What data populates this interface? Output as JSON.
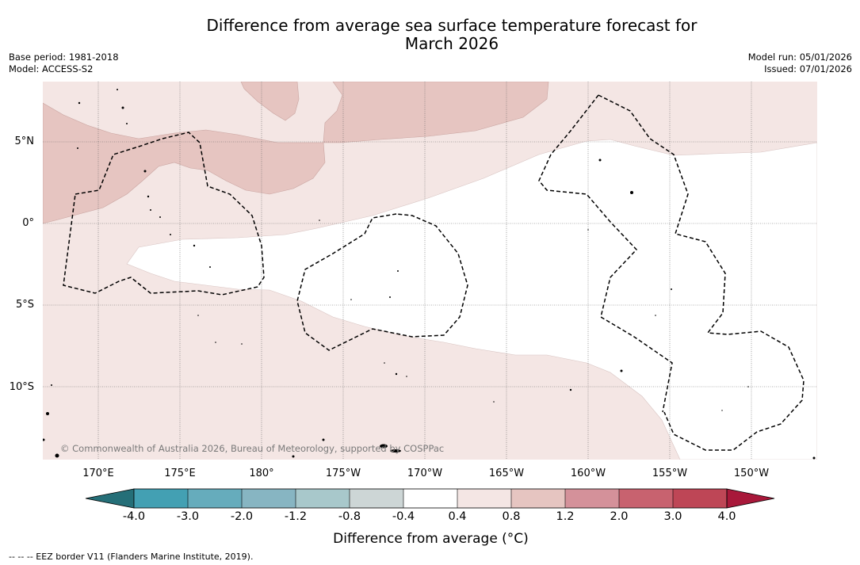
{
  "title_line1": "Difference from average sea surface temperature forecast for",
  "title_line2": "March 2026",
  "base_period": "Base period: 1981-2018",
  "model": "Model: ACCESS-S2",
  "model_run": "Model run: 05/01/2026",
  "issued": "Issued: 07/01/2026",
  "copyright": "© Commonwealth of Australia 2026, Bureau of Meteorology, supported by COSPPac",
  "map": {
    "lat_labels": [
      "5°N",
      "0°",
      "5°S",
      "10°S"
    ],
    "lon_labels": [
      "170°E",
      "175°E",
      "180°",
      "175°W",
      "170°W",
      "165°W",
      "160°W",
      "155°W",
      "150°W"
    ],
    "colors": {
      "anom_0_4_0_8": "#f4e6e4",
      "anom_0_8_1_2": "#e6c5c1",
      "eez_border": "#000000",
      "gridline": "#666666"
    }
  },
  "colorbar": {
    "label": "Difference from average (°C)",
    "ticks": [
      "-4.0",
      "-3.0",
      "-2.0",
      "-1.2",
      "-0.8",
      "-0.4",
      "0.4",
      "0.8",
      "1.2",
      "2.0",
      "3.0",
      "4.0"
    ],
    "colors": [
      "#256f78",
      "#43a0b3",
      "#66acbc",
      "#87b5c2",
      "#a8c8cb",
      "#cdd6d6",
      "#ffffff",
      "#f4e6e4",
      "#e6c5c1",
      "#d4919a",
      "#c8626f",
      "#be4656",
      "#a8183a"
    ]
  },
  "footnote": "-- -- -- EEZ border V11 (Flanders Marine Institute, 2019)."
}
